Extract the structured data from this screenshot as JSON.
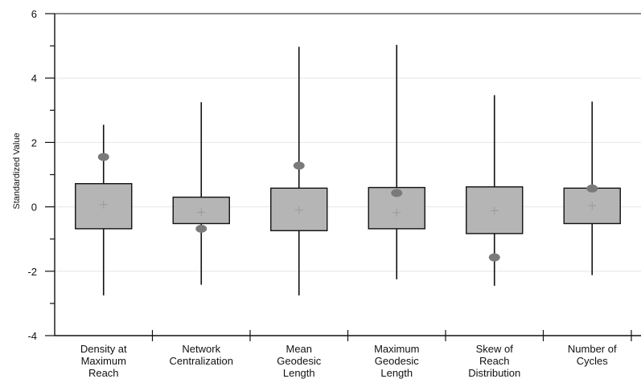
{
  "chart_data": {
    "type": "box",
    "ylabel": "Standardized Value",
    "xlabel": "",
    "ylim": [
      -4,
      6
    ],
    "yticks": [
      -4,
      -2,
      0,
      2,
      4,
      6
    ],
    "ytick_labels": [
      "-4",
      "-2",
      "0",
      "2",
      "4",
      "6"
    ],
    "grid": "horizontal, light",
    "categories": [
      [
        "Density at",
        "Maximum",
        "Reach"
      ],
      [
        "Network",
        "Centralization"
      ],
      [
        "Mean",
        "Geodesic",
        "Length"
      ],
      [
        "Maximum",
        "Geodesic",
        "Length"
      ],
      [
        "Skew of",
        "Reach",
        "Distribution"
      ],
      [
        "Number of",
        "Cycles"
      ]
    ],
    "boxes": [
      {
        "whisker_low": -2.75,
        "q1": -0.68,
        "q3": 0.72,
        "whisker_high": 2.55,
        "mean": 0.07,
        "observed": 1.55
      },
      {
        "whisker_low": -2.42,
        "q1": -0.52,
        "q3": 0.3,
        "whisker_high": 3.25,
        "mean": -0.17,
        "observed": -0.68
      },
      {
        "whisker_low": -2.75,
        "q1": -0.74,
        "q3": 0.58,
        "whisker_high": 4.97,
        "mean": -0.1,
        "observed": 1.28
      },
      {
        "whisker_low": -2.25,
        "q1": -0.68,
        "q3": 0.6,
        "whisker_high": 5.03,
        "mean": -0.18,
        "observed": 0.43
      },
      {
        "whisker_low": -2.45,
        "q1": -0.83,
        "q3": 0.62,
        "whisker_high": 3.47,
        "mean": -0.12,
        "observed": -1.57
      },
      {
        "whisker_low": -2.12,
        "q1": -0.52,
        "q3": 0.58,
        "whisker_high": 3.27,
        "mean": 0.03,
        "observed": 0.57
      }
    ],
    "colors": {
      "box_fill": "#b5b5b5",
      "box_stroke": "#111111",
      "marker": "#7a7a7a",
      "grid": "#e6e6e6",
      "axis": "#111111",
      "mean_marker": "#9a9a9a"
    }
  }
}
